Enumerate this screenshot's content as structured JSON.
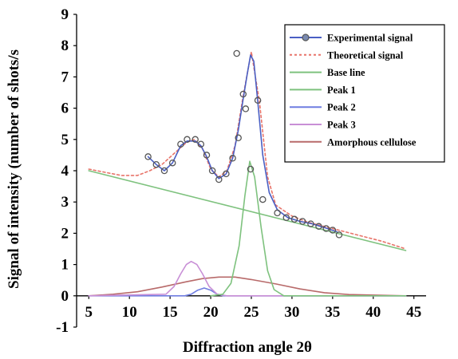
{
  "chart_data": {
    "type": "line",
    "title": "",
    "xlabel": "Diffraction angle 2θ",
    "ylabel": "Signal of intensity (number of shots/s",
    "xlim": [
      3.5,
      46.5
    ],
    "ylim": [
      -1,
      9
    ],
    "x_ticks": [
      5,
      10,
      15,
      20,
      25,
      30,
      35,
      40,
      45
    ],
    "y_ticks": [
      -1,
      0,
      1,
      2,
      3,
      4,
      5,
      6,
      7,
      8,
      9
    ],
    "legend_position": "top-right",
    "colors": {
      "experimental": "#4a5fc4",
      "experimental_marker": "#555555",
      "theoretical": "#e8746a",
      "baseline": "#7ec27e",
      "peak1": "#7ec27e",
      "peak2": "#6f7de0",
      "peak3": "#c88fd6",
      "amorphous": "#b86a6a"
    },
    "series": [
      {
        "name": "Experimental signal",
        "style": "line-marker",
        "points": [
          [
            12.3,
            4.45
          ],
          [
            13.3,
            4.2
          ],
          [
            14.3,
            4.0
          ],
          [
            15.3,
            4.25
          ],
          [
            16.3,
            4.8
          ],
          [
            17.1,
            4.95
          ],
          [
            18.1,
            4.95
          ],
          [
            18.8,
            4.8
          ],
          [
            19.5,
            4.45
          ],
          [
            20.2,
            4.0
          ],
          [
            21.0,
            3.75
          ],
          [
            21.9,
            3.9
          ],
          [
            22.7,
            4.4
          ],
          [
            23.4,
            5.3
          ],
          [
            24.0,
            6.3
          ],
          [
            24.5,
            7.1
          ],
          [
            24.9,
            7.7
          ],
          [
            25.3,
            7.5
          ],
          [
            25.8,
            6.2
          ],
          [
            26.4,
            4.5
          ],
          [
            27.2,
            3.3
          ],
          [
            28.2,
            2.75
          ],
          [
            29.5,
            2.5
          ],
          [
            31.0,
            2.38
          ],
          [
            32.5,
            2.3
          ],
          [
            34.0,
            2.18
          ],
          [
            35.5,
            2.05
          ]
        ]
      },
      {
        "name": "Theoretical signal",
        "style": "dashed",
        "points": [
          [
            5.0,
            4.05
          ],
          [
            7.0,
            3.95
          ],
          [
            9.0,
            3.85
          ],
          [
            11.0,
            3.85
          ],
          [
            12.5,
            4.0
          ],
          [
            14.0,
            4.2
          ],
          [
            15.5,
            4.55
          ],
          [
            17.0,
            4.9
          ],
          [
            18.0,
            5.0
          ],
          [
            19.0,
            4.7
          ],
          [
            20.0,
            4.05
          ],
          [
            21.0,
            3.8
          ],
          [
            22.0,
            4.0
          ],
          [
            23.0,
            4.8
          ],
          [
            24.0,
            6.4
          ],
          [
            25.0,
            7.8
          ],
          [
            26.0,
            6.2
          ],
          [
            27.0,
            3.8
          ],
          [
            28.0,
            2.9
          ],
          [
            30.0,
            2.55
          ],
          [
            32.0,
            2.35
          ],
          [
            35.0,
            2.15
          ],
          [
            38.0,
            1.95
          ],
          [
            41.0,
            1.75
          ],
          [
            44.0,
            1.5
          ]
        ]
      },
      {
        "name": "Base line",
        "style": "line",
        "points": [
          [
            5.0,
            4.0
          ],
          [
            44.0,
            1.45
          ]
        ]
      },
      {
        "name": "Peak 1",
        "style": "line",
        "points": [
          [
            20.0,
            0.0
          ],
          [
            21.5,
            0.05
          ],
          [
            22.5,
            0.4
          ],
          [
            23.5,
            1.6
          ],
          [
            24.2,
            3.2
          ],
          [
            24.8,
            4.3
          ],
          [
            25.4,
            3.8
          ],
          [
            26.2,
            2.2
          ],
          [
            27.0,
            0.8
          ],
          [
            27.8,
            0.2
          ],
          [
            29.0,
            0.0
          ],
          [
            44.0,
            0.0
          ]
        ]
      },
      {
        "name": "Peak 2",
        "style": "line",
        "points": [
          [
            5.0,
            0.0
          ],
          [
            16.8,
            0.0
          ],
          [
            17.6,
            0.05
          ],
          [
            18.4,
            0.18
          ],
          [
            19.2,
            0.25
          ],
          [
            20.0,
            0.18
          ],
          [
            20.8,
            0.05
          ],
          [
            21.6,
            0.0
          ],
          [
            44.0,
            0.0
          ]
        ]
      },
      {
        "name": "Peak 3",
        "style": "line",
        "points": [
          [
            5.0,
            0.0
          ],
          [
            14.5,
            0.05
          ],
          [
            15.5,
            0.3
          ],
          [
            16.3,
            0.7
          ],
          [
            17.0,
            1.0
          ],
          [
            17.6,
            1.1
          ],
          [
            18.3,
            1.0
          ],
          [
            19.0,
            0.7
          ],
          [
            19.8,
            0.3
          ],
          [
            20.8,
            0.05
          ],
          [
            22.0,
            0.0
          ],
          [
            44.0,
            0.0
          ]
        ]
      },
      {
        "name": "Amorphous cellulose",
        "style": "line",
        "points": [
          [
            5.0,
            0.0
          ],
          [
            8.0,
            0.05
          ],
          [
            11.0,
            0.13
          ],
          [
            14.0,
            0.28
          ],
          [
            17.0,
            0.45
          ],
          [
            19.0,
            0.55
          ],
          [
            21.0,
            0.6
          ],
          [
            23.0,
            0.6
          ],
          [
            25.0,
            0.52
          ],
          [
            28.0,
            0.38
          ],
          [
            31.0,
            0.22
          ],
          [
            34.0,
            0.1
          ],
          [
            37.0,
            0.04
          ],
          [
            44.0,
            0.0
          ]
        ]
      }
    ],
    "experimental_markers": [
      [
        12.3,
        4.45
      ],
      [
        13.3,
        4.2
      ],
      [
        14.3,
        4.0
      ],
      [
        15.3,
        4.25
      ],
      [
        16.3,
        4.85
      ],
      [
        17.1,
        5.0
      ],
      [
        18.1,
        5.0
      ],
      [
        18.8,
        4.85
      ],
      [
        19.5,
        4.5
      ],
      [
        20.2,
        4.0
      ],
      [
        21.0,
        3.72
      ],
      [
        21.9,
        3.9
      ],
      [
        22.7,
        4.4
      ],
      [
        23.2,
        7.75
      ],
      [
        23.4,
        5.05
      ],
      [
        24.0,
        6.45
      ],
      [
        24.3,
        5.98
      ],
      [
        24.9,
        4.05
      ],
      [
        25.8,
        6.25
      ],
      [
        26.4,
        3.08
      ],
      [
        28.2,
        2.65
      ],
      [
        29.3,
        2.5
      ],
      [
        30.3,
        2.45
      ],
      [
        31.3,
        2.38
      ],
      [
        32.3,
        2.3
      ],
      [
        33.3,
        2.22
      ],
      [
        34.2,
        2.15
      ],
      [
        35.0,
        2.1
      ],
      [
        35.8,
        1.95
      ]
    ]
  }
}
